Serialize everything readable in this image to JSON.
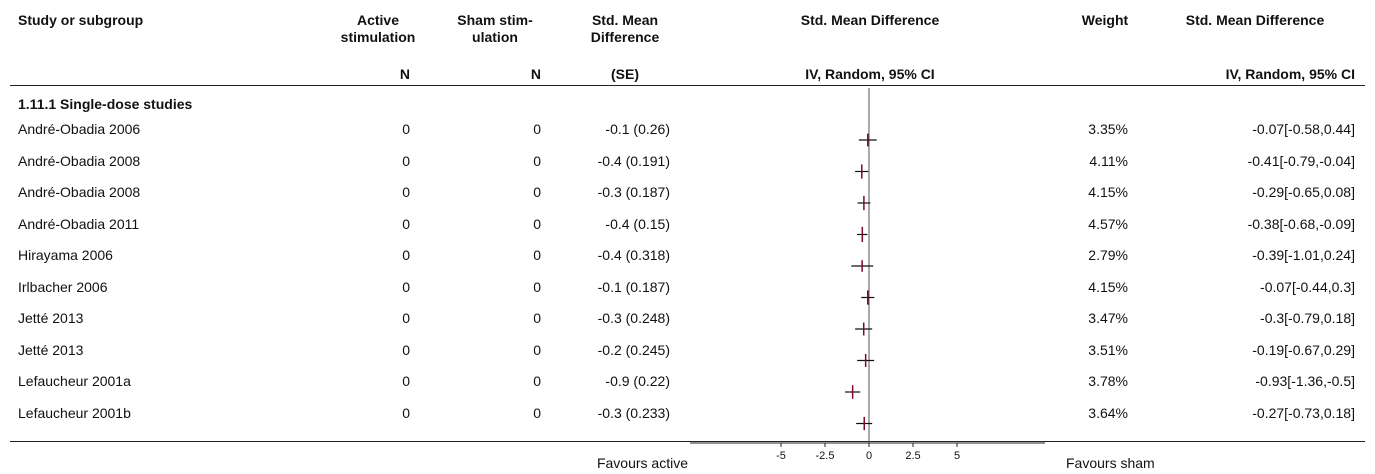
{
  "header": {
    "study": "Study or subgroup",
    "active_line1": "Active",
    "active_line2": "stimulation",
    "sham_line1": "Sham stim-",
    "sham_line2": "ulation",
    "smd_line1": "Std. Mean",
    "smd_line2": "Difference",
    "plot_title": "Std. Mean Difference",
    "weight": "Weight",
    "smd_ci_title": "Std. Mean Difference",
    "active_sub": "N",
    "sham_sub": "N",
    "smd_sub": "(SE)",
    "plot_sub": "IV, Random, 95% CI",
    "ci_sub": "IV, Random, 95% CI"
  },
  "subgroup_title": "1.11.1 Single-dose studies",
  "rows": [
    {
      "study": "André-Obadia 2006",
      "active_n": "0",
      "sham_n": "0",
      "smd_se": "-0.1 (0.26)",
      "weight": "3.35%",
      "ci_text": "-0.07[-0.58,0.44]"
    },
    {
      "study": "André-Obadia 2008",
      "active_n": "0",
      "sham_n": "0",
      "smd_se": "-0.4 (0.191)",
      "weight": "4.11%",
      "ci_text": "-0.41[-0.79,-0.04]"
    },
    {
      "study": "André-Obadia 2008",
      "active_n": "0",
      "sham_n": "0",
      "smd_se": "-0.3 (0.187)",
      "weight": "4.15%",
      "ci_text": "-0.29[-0.65,0.08]"
    },
    {
      "study": "André-Obadia 2011",
      "active_n": "0",
      "sham_n": "0",
      "smd_se": "-0.4 (0.15)",
      "weight": "4.57%",
      "ci_text": "-0.38[-0.68,-0.09]"
    },
    {
      "study": "Hirayama 2006",
      "active_n": "0",
      "sham_n": "0",
      "smd_se": "-0.4 (0.318)",
      "weight": "2.79%",
      "ci_text": "-0.39[-1.01,0.24]"
    },
    {
      "study": "Irlbacher 2006",
      "active_n": "0",
      "sham_n": "0",
      "smd_se": "-0.1 (0.187)",
      "weight": "4.15%",
      "ci_text": "-0.07[-0.44,0.3]"
    },
    {
      "study": "Jetté 2013",
      "active_n": "0",
      "sham_n": "0",
      "smd_se": "-0.3 (0.248)",
      "weight": "3.47%",
      "ci_text": "-0.3[-0.79,0.18]"
    },
    {
      "study": "Jetté 2013",
      "active_n": "0",
      "sham_n": "0",
      "smd_se": "-0.2 (0.245)",
      "weight": "3.51%",
      "ci_text": "-0.19[-0.67,0.29]"
    },
    {
      "study": "Lefaucheur 2001a",
      "active_n": "0",
      "sham_n": "0",
      "smd_se": "-0.9 (0.22)",
      "weight": "3.78%",
      "ci_text": "-0.93[-1.36,-0.5]"
    },
    {
      "study": "Lefaucheur 2001b",
      "active_n": "0",
      "sham_n": "0",
      "smd_se": "-0.3 (0.233)",
      "weight": "3.64%",
      "ci_text": "-0.27[-0.73,0.18]"
    }
  ],
  "footer": {
    "favours_left": "Favours active",
    "favours_right": "Favours sham"
  },
  "chart_data": {
    "type": "forest",
    "x_ticks": [
      "-5",
      "-2.5",
      "0",
      "2.5",
      "5"
    ],
    "xlim": [
      -5,
      5
    ],
    "null_line": 0,
    "marker_color": "#7a0a24",
    "studies": [
      {
        "study": "André-Obadia 2006",
        "estimate": -0.07,
        "ci_low": -0.58,
        "ci_high": 0.44,
        "weight": 3.35
      },
      {
        "study": "André-Obadia 2008",
        "estimate": -0.41,
        "ci_low": -0.79,
        "ci_high": -0.04,
        "weight": 4.11
      },
      {
        "study": "André-Obadia 2008",
        "estimate": -0.29,
        "ci_low": -0.65,
        "ci_high": 0.08,
        "weight": 4.15
      },
      {
        "study": "André-Obadia 2011",
        "estimate": -0.38,
        "ci_low": -0.68,
        "ci_high": -0.09,
        "weight": 4.57
      },
      {
        "study": "Hirayama 2006",
        "estimate": -0.39,
        "ci_low": -1.01,
        "ci_high": 0.24,
        "weight": 2.79
      },
      {
        "study": "Irlbacher 2006",
        "estimate": -0.07,
        "ci_low": -0.44,
        "ci_high": 0.3,
        "weight": 4.15
      },
      {
        "study": "Jetté 2013",
        "estimate": -0.3,
        "ci_low": -0.79,
        "ci_high": 0.18,
        "weight": 3.47
      },
      {
        "study": "Jetté 2013",
        "estimate": -0.19,
        "ci_low": -0.67,
        "ci_high": 0.29,
        "weight": 3.51
      },
      {
        "study": "Lefaucheur 2001a",
        "estimate": -0.93,
        "ci_low": -1.36,
        "ci_high": -0.5,
        "weight": 3.78
      },
      {
        "study": "Lefaucheur 2001b",
        "estimate": -0.27,
        "ci_low": -0.73,
        "ci_high": 0.18,
        "weight": 3.64
      }
    ]
  }
}
